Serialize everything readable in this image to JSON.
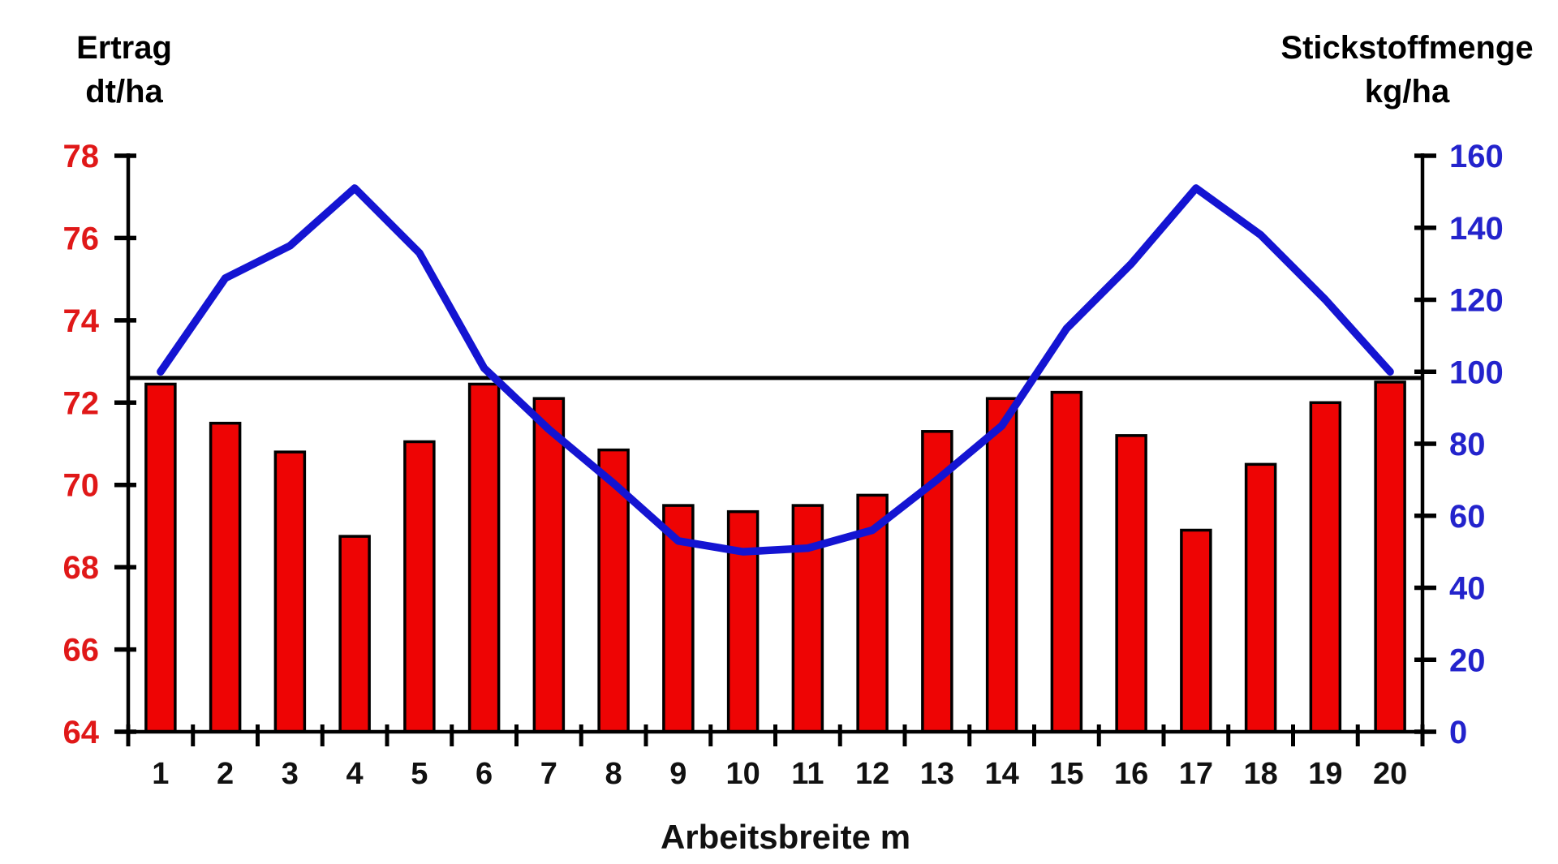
{
  "page": {
    "background": "#ffffff"
  },
  "chart_data": {
    "type": "bar",
    "subtype": "dual-axis-bar-and-line",
    "title": "",
    "xlabel": "Arbeitsbreite m",
    "categories": [
      "1",
      "2",
      "3",
      "4",
      "5",
      "6",
      "7",
      "8",
      "9",
      "10",
      "11",
      "12",
      "13",
      "14",
      "15",
      "16",
      "17",
      "18",
      "19",
      "20"
    ],
    "left_axis": {
      "title_line1": "Ertrag",
      "title_line2": "dt/ha",
      "min": 64,
      "max": 78,
      "step": 2,
      "tick_labels": [
        "78",
        "76",
        "74",
        "72",
        "70",
        "68",
        "66",
        "64"
      ],
      "text_color": "#e01818"
    },
    "right_axis": {
      "title_line1": "Stickstoffmenge",
      "title_line2": "kg/ha",
      "min": 0,
      "max": 160,
      "step": 20,
      "tick_labels": [
        "160",
        "140",
        "120",
        "100",
        "80",
        "60",
        "40",
        "20",
        "0"
      ],
      "text_color": "#2323cc"
    },
    "series": [
      {
        "name": "Ertrag",
        "type": "bar",
        "axis": "left",
        "color": "#ee0404",
        "outline_color": "#000000",
        "values": [
          72.45,
          71.5,
          70.8,
          68.75,
          71.05,
          72.45,
          72.1,
          70.85,
          69.5,
          69.35,
          69.5,
          69.75,
          71.3,
          72.1,
          72.25,
          71.2,
          68.9,
          70.5,
          72.0,
          72.5
        ]
      },
      {
        "name": "Stickstoffmenge",
        "type": "line",
        "axis": "right",
        "color": "#1414d2",
        "values": [
          100,
          126,
          135,
          151,
          133,
          101,
          84,
          69,
          53,
          50,
          51,
          56,
          70,
          85,
          112,
          130,
          151,
          138,
          120,
          100
        ]
      }
    ],
    "reference_line": {
      "axis": "left",
      "value": 72.6,
      "color": "#000000"
    },
    "grid": false,
    "legend": false,
    "axis_color": "#000000"
  }
}
